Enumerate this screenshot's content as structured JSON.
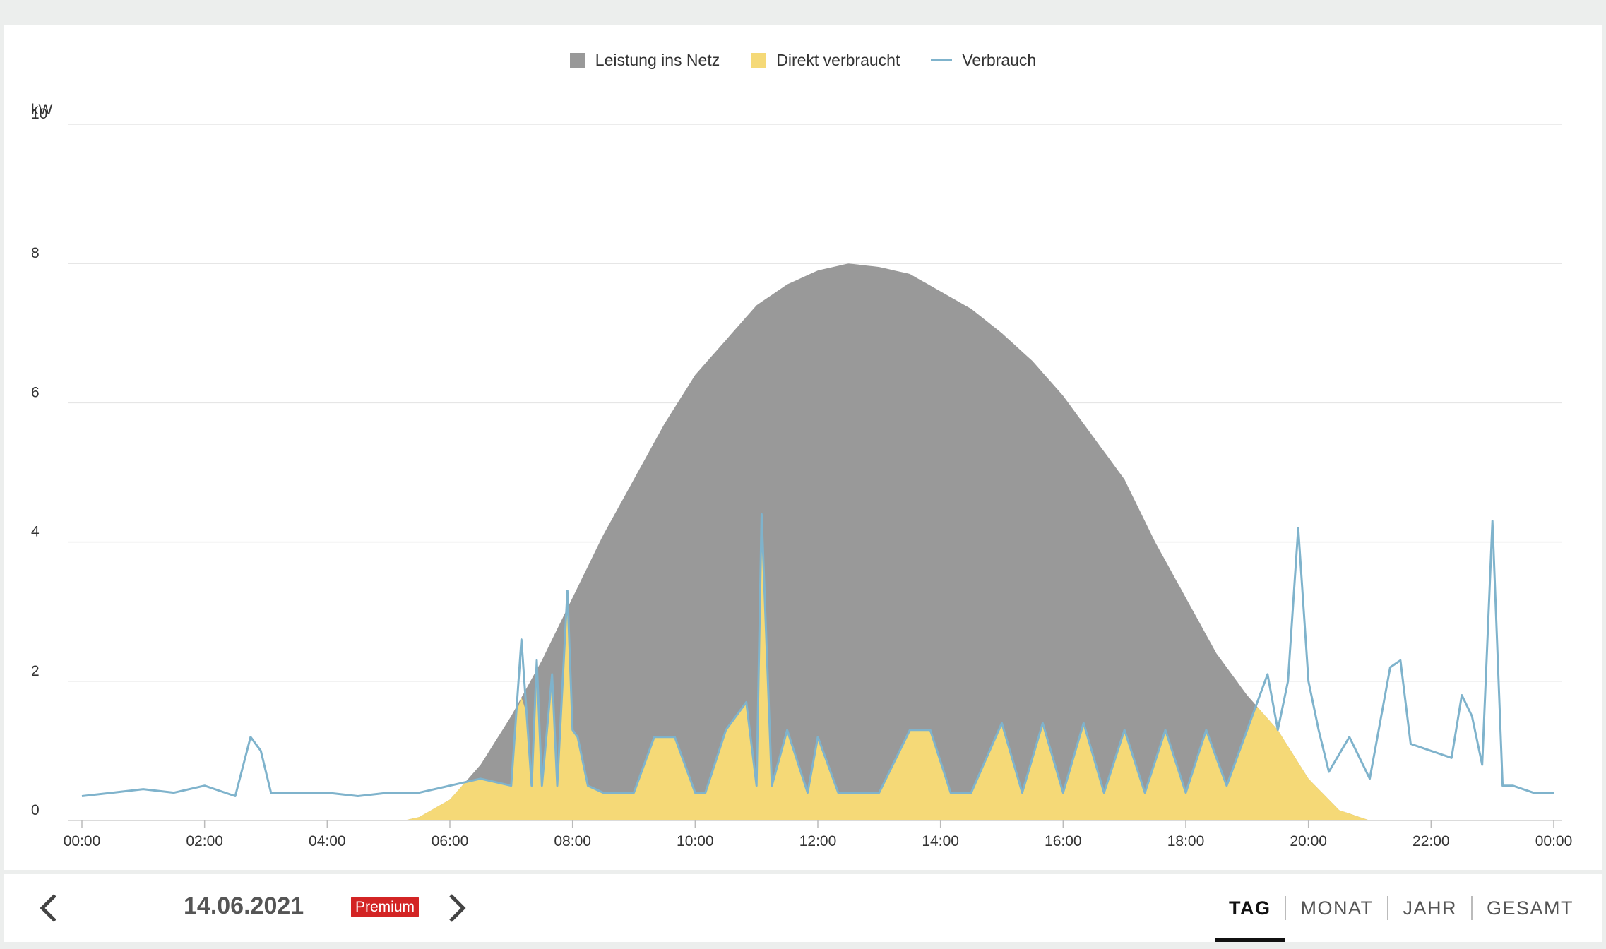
{
  "chart_data": {
    "type": "area",
    "ylabel": "kW",
    "ylim": [
      0,
      10
    ],
    "yticks": [
      "0",
      "2",
      "4",
      "6",
      "8",
      "10"
    ],
    "xlim": [
      "00:00",
      "24:00"
    ],
    "xticks": [
      "00:00",
      "02:00",
      "04:00",
      "06:00",
      "08:00",
      "10:00",
      "12:00",
      "14:00",
      "16:00",
      "18:00",
      "20:00",
      "22:00",
      "00:00"
    ],
    "legend_position": "top-center",
    "grid": true,
    "series": [
      {
        "name": "Leistung ins Netz",
        "kind": "area",
        "color": "#999999",
        "x": [
          "05:15",
          "05:30",
          "06:00",
          "06:30",
          "07:00",
          "07:30",
          "08:00",
          "08:30",
          "09:00",
          "09:30",
          "10:00",
          "10:30",
          "11:00",
          "11:30",
          "12:00",
          "12:30",
          "13:00",
          "13:30",
          "14:00",
          "14:30",
          "15:00",
          "15:30",
          "16:00",
          "16:30",
          "17:00",
          "17:30",
          "18:00",
          "18:30",
          "19:00",
          "19:30",
          "20:00",
          "20:30",
          "21:00"
        ],
        "values": [
          0.0,
          0.05,
          0.3,
          0.8,
          1.5,
          2.3,
          3.2,
          4.1,
          4.9,
          5.7,
          6.4,
          6.9,
          7.4,
          7.7,
          7.9,
          8.0,
          7.95,
          7.85,
          7.6,
          7.35,
          7.0,
          6.6,
          6.1,
          5.5,
          4.9,
          4.0,
          3.2,
          2.4,
          1.8,
          1.3,
          0.6,
          0.15,
          0.0
        ]
      },
      {
        "name": "Direkt verbraucht",
        "kind": "area",
        "color": "#f5d977"
      },
      {
        "name": "Verbrauch",
        "kind": "line",
        "color": "#7fb3cc",
        "x": [
          "00:00",
          "00:30",
          "01:00",
          "01:30",
          "02:00",
          "02:30",
          "02:45",
          "02:55",
          "03:05",
          "03:15",
          "04:00",
          "04:30",
          "05:00",
          "05:30",
          "06:00",
          "06:30",
          "07:00",
          "07:10",
          "07:20",
          "07:25",
          "07:30",
          "07:40",
          "07:45",
          "07:55",
          "08:00",
          "08:05",
          "08:15",
          "08:30",
          "09:00",
          "09:20",
          "09:40",
          "10:00",
          "10:10",
          "10:30",
          "10:50",
          "11:00",
          "11:05",
          "11:15",
          "11:30",
          "11:50",
          "12:00",
          "12:20",
          "12:40",
          "13:00",
          "13:30",
          "13:50",
          "14:10",
          "14:30",
          "15:00",
          "15:20",
          "15:40",
          "16:00",
          "16:20",
          "16:40",
          "17:00",
          "17:20",
          "17:40",
          "18:00",
          "18:20",
          "18:40",
          "19:00",
          "19:20",
          "19:30",
          "19:40",
          "19:50",
          "20:00",
          "20:10",
          "20:20",
          "20:40",
          "21:00",
          "21:20",
          "21:30",
          "21:40",
          "22:00",
          "22:20",
          "22:30",
          "22:40",
          "22:50",
          "23:00",
          "23:10",
          "23:20",
          "23:40",
          "24:00"
        ],
        "values": [
          0.35,
          0.4,
          0.45,
          0.4,
          0.5,
          0.35,
          1.2,
          1.0,
          0.4,
          0.4,
          0.4,
          0.35,
          0.4,
          0.4,
          0.5,
          0.6,
          0.5,
          2.6,
          0.5,
          2.3,
          0.5,
          2.1,
          0.5,
          3.3,
          1.3,
          1.2,
          0.5,
          0.4,
          0.4,
          1.2,
          1.2,
          0.4,
          0.4,
          1.3,
          1.7,
          0.5,
          4.4,
          0.5,
          1.3,
          0.4,
          1.2,
          0.4,
          0.4,
          0.4,
          1.3,
          1.3,
          0.4,
          0.4,
          1.4,
          0.4,
          1.4,
          0.4,
          1.4,
          0.4,
          1.3,
          0.4,
          1.3,
          0.4,
          1.3,
          0.5,
          1.3,
          2.1,
          1.3,
          2.0,
          4.2,
          2.0,
          1.3,
          0.7,
          1.2,
          0.6,
          2.2,
          2.3,
          1.1,
          1.0,
          0.9,
          1.8,
          1.5,
          0.8,
          4.3,
          0.5,
          0.5,
          0.4,
          0.4
        ]
      }
    ]
  },
  "footer": {
    "date": "14.06.2021",
    "premium_label": "Premium",
    "prev_icon": "chevron-left-icon",
    "next_icon": "chevron-right-icon",
    "tabs": [
      {
        "label": "TAG",
        "active": true
      },
      {
        "label": "MONAT",
        "active": false
      },
      {
        "label": "JAHR",
        "active": false
      },
      {
        "label": "GESAMT",
        "active": false
      }
    ]
  }
}
